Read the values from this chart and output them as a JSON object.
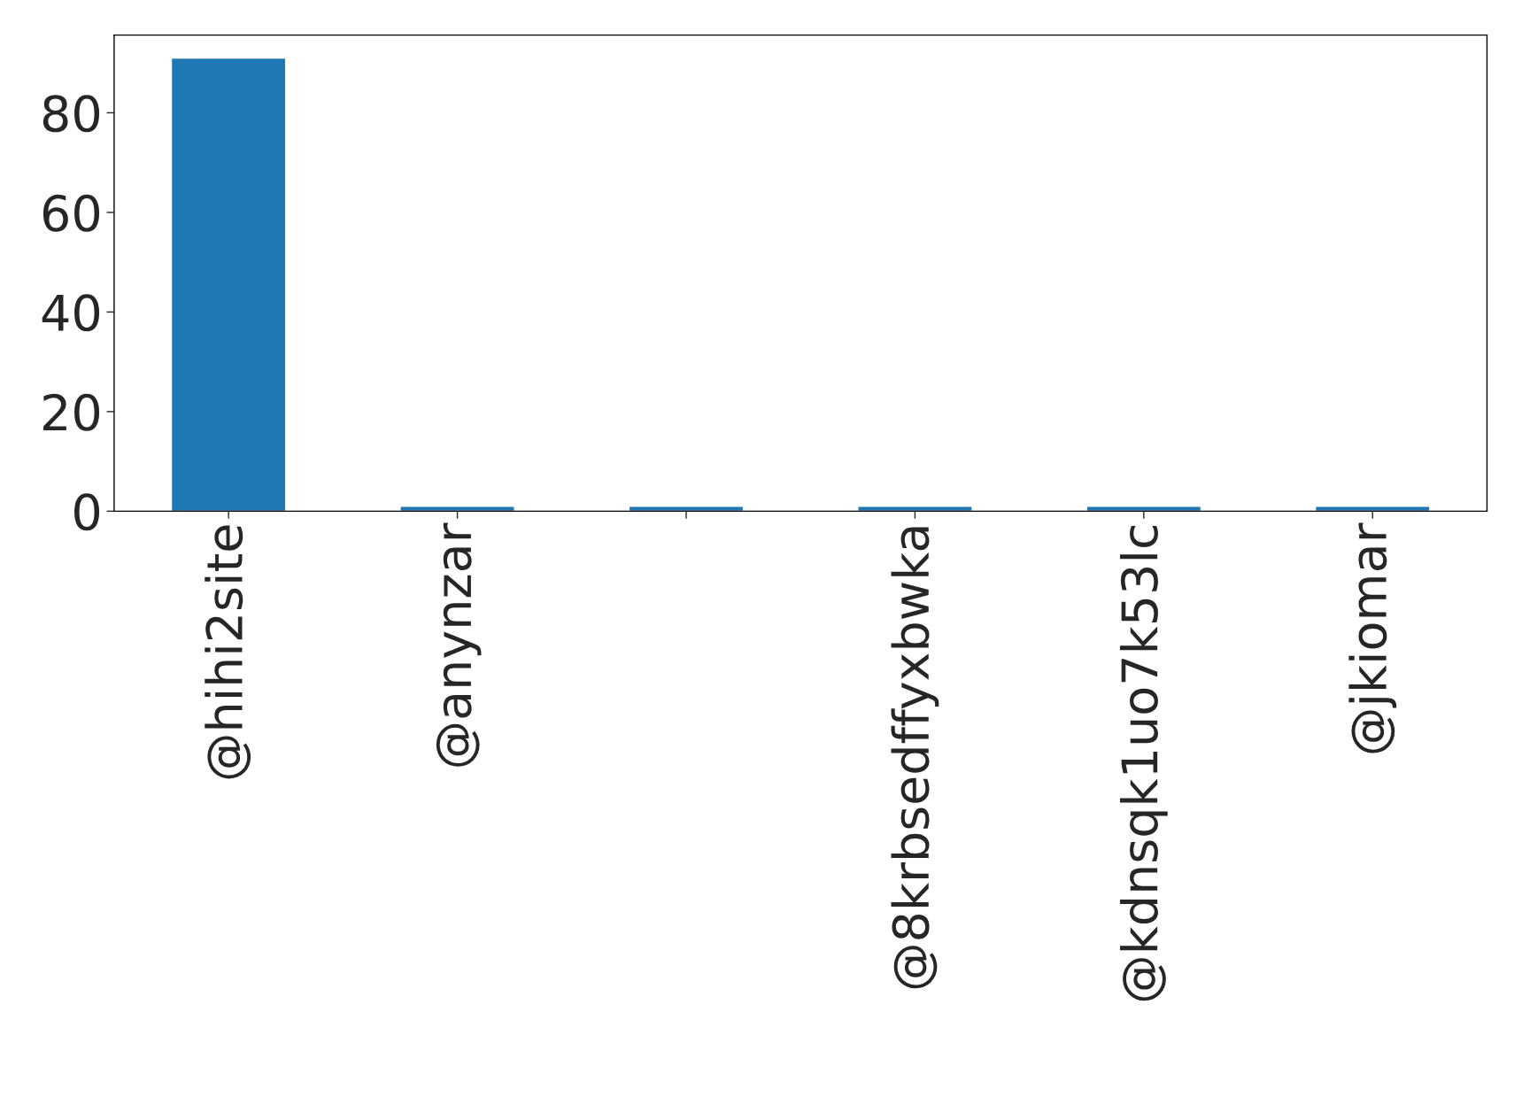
{
  "chart_data": {
    "type": "bar",
    "categories": [
      "@hihi2site",
      "@anynzar",
      null,
      "@8krbsedffyxbwka",
      "@kdnsqk1uo7k53lc",
      "@jkiomar"
    ],
    "values": [
      91,
      1,
      1,
      1,
      1,
      1
    ],
    "color": "#1f77b4",
    "ylim": [
      0,
      95.6
    ],
    "yticks": [
      0,
      20,
      40,
      60,
      80
    ],
    "grid": false,
    "legend": false
  }
}
